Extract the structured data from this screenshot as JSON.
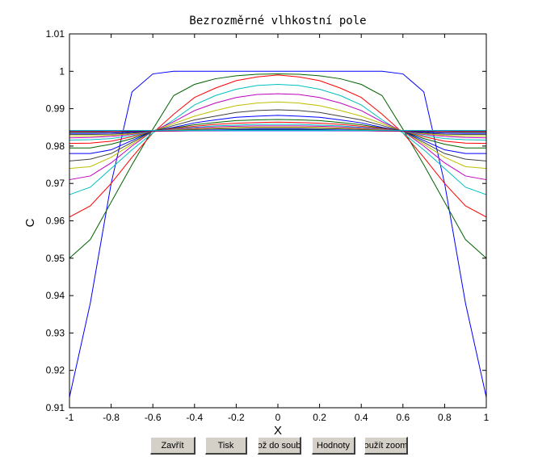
{
  "window": {
    "background": "#ffffff"
  },
  "chart_data": {
    "type": "line",
    "title": "Bezrozměrné vlhkostní pole",
    "xlabel": "X",
    "ylabel": "C",
    "xlim": [
      -1,
      1
    ],
    "ylim": [
      0.91,
      1.01
    ],
    "xticks": [
      -1,
      -0.8,
      -0.6,
      -0.4,
      -0.2,
      0,
      0.2,
      0.4,
      0.6,
      0.8,
      1
    ],
    "xtick_labels": [
      "-1",
      "-0.8",
      "-0.6",
      "-0.4",
      "-0.2",
      "0",
      "0.2",
      "0.4",
      "0.6",
      "0.8",
      "1"
    ],
    "yticks": [
      0.91,
      0.92,
      0.93,
      0.94,
      0.95,
      0.96,
      0.97,
      0.98,
      0.99,
      1,
      1.01
    ],
    "ytick_labels": [
      "0.91",
      "0.92",
      "0.93",
      "0.94",
      "0.95",
      "0.96",
      "0.97",
      "0.98",
      "0.99",
      "1",
      "1.01"
    ],
    "grid": false,
    "x": [
      -1,
      -0.9,
      -0.8,
      -0.7,
      -0.6,
      -0.5,
      -0.4,
      -0.3,
      -0.2,
      -0.1,
      0,
      0.1,
      0.2,
      0.3,
      0.4,
      0.5,
      0.6,
      0.7,
      0.8,
      0.9,
      1
    ],
    "series": [
      {
        "color": "#0000ff",
        "values": [
          0.9128,
          0.938,
          0.97,
          0.9945,
          0.9993,
          1.0,
          1.0,
          1.0,
          1.0,
          1.0,
          1.0,
          1.0,
          1.0,
          1.0,
          1.0,
          1.0,
          0.9993,
          0.9945,
          0.97,
          0.938,
          0.9128
        ]
      },
      {
        "color": "#006400",
        "values": [
          0.95,
          0.955,
          0.965,
          0.975,
          0.9845,
          0.9935,
          0.9965,
          0.998,
          0.9988,
          0.9992,
          0.9993,
          0.9992,
          0.9988,
          0.998,
          0.9965,
          0.9935,
          0.9845,
          0.975,
          0.965,
          0.955,
          0.95
        ]
      },
      {
        "color": "#ff0000",
        "values": [
          0.961,
          0.964,
          0.97,
          0.977,
          0.9835,
          0.9885,
          0.993,
          0.9955,
          0.9975,
          0.9985,
          0.999,
          0.9985,
          0.9975,
          0.9955,
          0.993,
          0.9885,
          0.9835,
          0.977,
          0.97,
          0.964,
          0.961
        ]
      },
      {
        "color": "#00bfbf",
        "values": [
          0.967,
          0.969,
          0.974,
          0.979,
          0.9835,
          0.987,
          0.991,
          0.9935,
          0.9952,
          0.9962,
          0.9965,
          0.9962,
          0.9952,
          0.9935,
          0.991,
          0.987,
          0.9835,
          0.979,
          0.974,
          0.969,
          0.967
        ]
      },
      {
        "color": "#bf00bf",
        "values": [
          0.971,
          0.972,
          0.9755,
          0.98,
          0.984,
          0.9865,
          0.9895,
          0.9915,
          0.993,
          0.9938,
          0.994,
          0.9938,
          0.993,
          0.9915,
          0.9895,
          0.9865,
          0.984,
          0.98,
          0.9755,
          0.972,
          0.971
        ]
      },
      {
        "color": "#bfbf00",
        "values": [
          0.974,
          0.9745,
          0.977,
          0.9805,
          0.984,
          0.986,
          0.988,
          0.9895,
          0.9908,
          0.9915,
          0.9918,
          0.9915,
          0.9908,
          0.9895,
          0.988,
          0.986,
          0.984,
          0.9805,
          0.977,
          0.9745,
          0.974
        ]
      },
      {
        "color": "#404040",
        "values": [
          0.976,
          0.9765,
          0.978,
          0.981,
          0.984,
          0.9855,
          0.987,
          0.988,
          0.989,
          0.9895,
          0.9897,
          0.9895,
          0.989,
          0.988,
          0.987,
          0.9855,
          0.984,
          0.981,
          0.978,
          0.9765,
          0.976
        ]
      },
      {
        "color": "#0000ff",
        "values": [
          0.978,
          0.978,
          0.979,
          0.9815,
          0.984,
          0.985,
          0.9862,
          0.987,
          0.9877,
          0.988,
          0.9882,
          0.988,
          0.9877,
          0.987,
          0.9862,
          0.985,
          0.984,
          0.9815,
          0.979,
          0.978,
          0.978
        ]
      },
      {
        "color": "#006400",
        "values": [
          0.9795,
          0.9795,
          0.9805,
          0.982,
          0.984,
          0.9848,
          0.9857,
          0.9863,
          0.9868,
          0.987,
          0.9871,
          0.987,
          0.9868,
          0.9863,
          0.9857,
          0.9848,
          0.984,
          0.982,
          0.9805,
          0.9795,
          0.9795
        ]
      },
      {
        "color": "#ff0000",
        "values": [
          0.9807,
          0.9808,
          0.9813,
          0.9825,
          0.984,
          0.9847,
          0.9853,
          0.9858,
          0.9861,
          0.9863,
          0.9864,
          0.9863,
          0.9861,
          0.9858,
          0.9853,
          0.9847,
          0.984,
          0.9825,
          0.9813,
          0.9808,
          0.9807
        ]
      },
      {
        "color": "#00bfbf",
        "values": [
          0.9816,
          0.9817,
          0.982,
          0.9828,
          0.984,
          0.9845,
          0.985,
          0.9854,
          0.9856,
          0.9858,
          0.9858,
          0.9858,
          0.9856,
          0.9854,
          0.985,
          0.9845,
          0.984,
          0.9828,
          0.982,
          0.9817,
          0.9816
        ]
      },
      {
        "color": "#bf00bf",
        "values": [
          0.9822,
          0.9823,
          0.9826,
          0.9831,
          0.984,
          0.9844,
          0.9848,
          0.9851,
          0.9853,
          0.9854,
          0.9854,
          0.9854,
          0.9853,
          0.9851,
          0.9848,
          0.9844,
          0.984,
          0.9831,
          0.9826,
          0.9823,
          0.9822
        ]
      },
      {
        "color": "#bfbf00",
        "values": [
          0.9827,
          0.9827,
          0.9829,
          0.9833,
          0.984,
          0.9843,
          0.9846,
          0.9848,
          0.985,
          0.9851,
          0.9851,
          0.9851,
          0.985,
          0.9848,
          0.9846,
          0.9843,
          0.984,
          0.9833,
          0.9829,
          0.9827,
          0.9827
        ]
      },
      {
        "color": "#404040",
        "values": [
          0.9831,
          0.9831,
          0.9832,
          0.9835,
          0.984,
          0.9842,
          0.9844,
          0.9846,
          0.9847,
          0.9848,
          0.9848,
          0.9848,
          0.9847,
          0.9846,
          0.9844,
          0.9842,
          0.984,
          0.9835,
          0.9832,
          0.9831,
          0.9831
        ]
      },
      {
        "color": "#0000ff",
        "values": [
          0.9834,
          0.9834,
          0.9835,
          0.9837,
          0.984,
          0.9841,
          0.9842,
          0.9843,
          0.9844,
          0.9845,
          0.9845,
          0.9845,
          0.9844,
          0.9843,
          0.9842,
          0.9841,
          0.984,
          0.9837,
          0.9835,
          0.9834,
          0.9834
        ]
      },
      {
        "color": "#006400",
        "values": [
          0.9837,
          0.9837,
          0.9838,
          0.9839,
          0.984,
          0.9841,
          0.9841,
          0.9842,
          0.9843,
          0.9843,
          0.9843,
          0.9843,
          0.9843,
          0.9842,
          0.9841,
          0.9841,
          0.984,
          0.9839,
          0.9838,
          0.9837,
          0.9837
        ]
      },
      {
        "color": "#ff0000",
        "values": [
          0.9839,
          0.9839,
          0.9839,
          0.984,
          0.984,
          0.984,
          0.9841,
          0.9841,
          0.9842,
          0.9842,
          0.9842,
          0.9842,
          0.9842,
          0.9841,
          0.9841,
          0.984,
          0.984,
          0.984,
          0.9839,
          0.9839,
          0.9839
        ]
      },
      {
        "color": "#0000ff",
        "values": [
          0.9841,
          0.9841,
          0.9841,
          0.9841,
          0.9841,
          0.9841,
          0.9841,
          0.9841,
          0.9841,
          0.9841,
          0.9841,
          0.9841,
          0.9841,
          0.9841,
          0.9841,
          0.9841,
          0.9841,
          0.9841,
          0.9841,
          0.9841,
          0.9841
        ]
      },
      {
        "color": "#00bfbf",
        "values": [
          0.9842,
          0.9842,
          0.9842,
          0.9842,
          0.9842,
          0.9842,
          0.9842,
          0.9842,
          0.9842,
          0.9842,
          0.9842,
          0.9842,
          0.9842,
          0.9842,
          0.9842,
          0.9842,
          0.9842,
          0.9842,
          0.9842,
          0.9842,
          0.9842
        ]
      }
    ]
  },
  "buttons": {
    "close": "Zavřít",
    "print": "Tisk",
    "save": "ož do soub",
    "values": "Hodnoty",
    "zoom": "oužít zoom"
  }
}
